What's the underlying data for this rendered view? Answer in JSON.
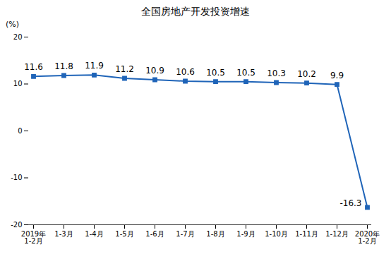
{
  "chart_data": {
    "type": "line",
    "title": "全国房地产开发投资增速",
    "y_label": "(%)",
    "categories": [
      "2019年\n1-2月",
      "1-3月",
      "1-4月",
      "1-5月",
      "1-6月",
      "1-7月",
      "1-8月",
      "1-9月",
      "1-10月",
      "1-11月",
      "1-12月",
      "2020年\n1-2月"
    ],
    "values": [
      11.6,
      11.8,
      11.9,
      11.2,
      10.9,
      10.6,
      10.5,
      10.5,
      10.3,
      10.2,
      9.9,
      -16.3
    ],
    "color": "#1f64b8",
    "marker": "square",
    "ylim": [
      -20,
      20
    ],
    "yticks": [
      -20,
      -10,
      0,
      10,
      20
    ],
    "grid": false,
    "data_labels": true
  }
}
